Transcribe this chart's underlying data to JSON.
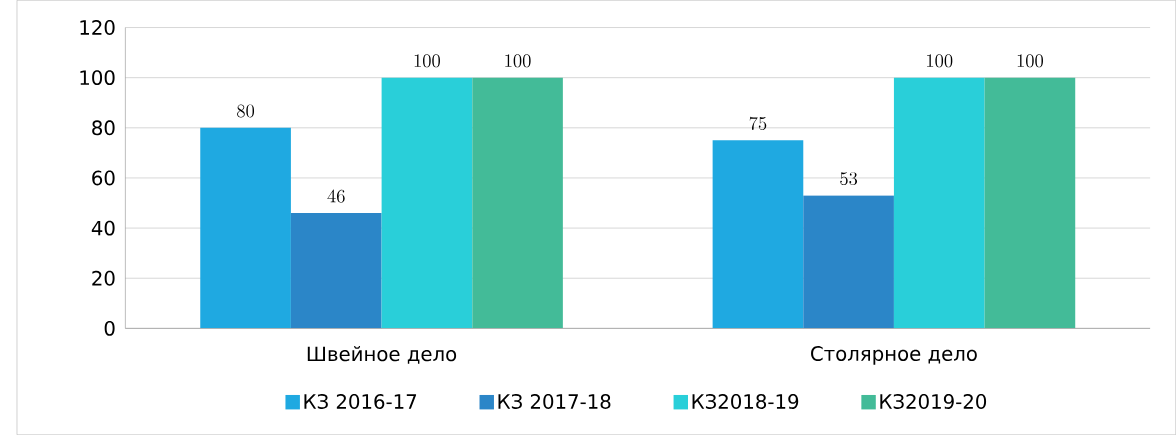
{
  "chart_data": {
    "type": "bar",
    "categories": [
      "Швейное дело",
      "Столярное дело"
    ],
    "series": [
      {
        "name": "КЗ 2016-17",
        "color": "#1fa9e1",
        "values": [
          80,
          75
        ]
      },
      {
        "name": "КЗ 2017-18",
        "color": "#2b86c8",
        "values": [
          46,
          53
        ]
      },
      {
        "name": "КЗ2018-19",
        "color": "#29cfd9",
        "values": [
          100,
          100
        ]
      },
      {
        "name": "КЗ2019-20",
        "color": "#43bb98",
        "values": [
          100,
          100
        ]
      }
    ],
    "ylim": [
      0,
      120
    ],
    "yticks": [
      0,
      20,
      40,
      60,
      80,
      100,
      120
    ],
    "grid": "y",
    "legend": "bottom",
    "data_labels": true
  }
}
